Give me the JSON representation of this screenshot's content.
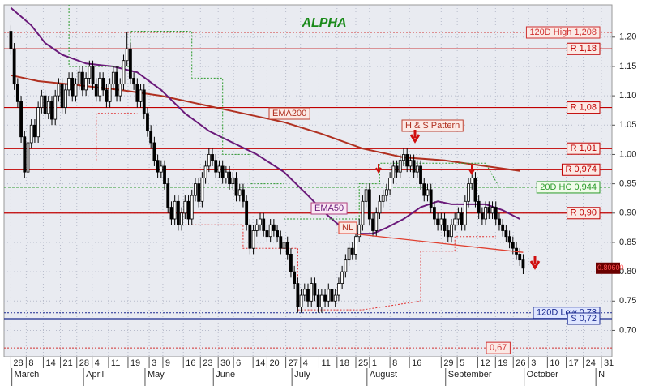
{
  "chart_data": {
    "type": "candlestick",
    "title": "ALPHA",
    "xlim": [
      -2,
      176
    ],
    "ylim": [
      0.655,
      1.255
    ],
    "xticks": [
      {
        "value": 0,
        "label": "28"
      },
      {
        "value": 4.5,
        "label": "8"
      },
      {
        "value": 9.5,
        "label": "14"
      },
      {
        "value": 14.5,
        "label": "21"
      },
      {
        "value": 19.3,
        "label": "28"
      },
      {
        "value": 23.8,
        "label": "4"
      },
      {
        "value": 28.6,
        "label": "11"
      },
      {
        "value": 34.3,
        "label": "19"
      },
      {
        "value": 40.5,
        "label": "3"
      },
      {
        "value": 44.5,
        "label": "9"
      },
      {
        "value": 50.5,
        "label": "16"
      },
      {
        "value": 55.5,
        "label": "23"
      },
      {
        "value": 60.7,
        "label": "30"
      },
      {
        "value": 65.2,
        "label": "6"
      },
      {
        "value": 70.9,
        "label": "14"
      },
      {
        "value": 75,
        "label": "20"
      },
      {
        "value": 80.5,
        "label": "27"
      },
      {
        "value": 84.8,
        "label": "4"
      },
      {
        "value": 90.2,
        "label": "11"
      },
      {
        "value": 95.5,
        "label": "18"
      },
      {
        "value": 101,
        "label": "25"
      },
      {
        "value": 105,
        "label": "1"
      },
      {
        "value": 111,
        "label": "8"
      },
      {
        "value": 116.7,
        "label": "16"
      },
      {
        "value": 126,
        "label": "29"
      },
      {
        "value": 130.7,
        "label": "5"
      },
      {
        "value": 136.7,
        "label": "12"
      },
      {
        "value": 141.9,
        "label": "19"
      },
      {
        "value": 147.1,
        "label": "26"
      },
      {
        "value": 151.6,
        "label": "3"
      },
      {
        "value": 157.1,
        "label": "10"
      },
      {
        "value": 162.6,
        "label": "17"
      },
      {
        "value": 167.6,
        "label": "24"
      },
      {
        "value": 172.9,
        "label": "31"
      }
    ],
    "months": [
      {
        "value": 1,
        "label": "March"
      },
      {
        "value": 22,
        "label": "April"
      },
      {
        "value": 40,
        "label": "May"
      },
      {
        "value": 60,
        "label": "June"
      },
      {
        "value": 83,
        "label": "July"
      },
      {
        "value": 105,
        "label": "August"
      },
      {
        "value": 128,
        "label": "September"
      },
      {
        "value": 151,
        "label": "October"
      },
      {
        "value": 172,
        "label": "N"
      }
    ],
    "yticks": [
      {
        "value": 0.7,
        "label": "0.70"
      },
      {
        "value": 0.75,
        "label": "0.75"
      },
      {
        "value": 0.8,
        "label": "0.80"
      },
      {
        "value": 0.85,
        "label": "0.85"
      },
      {
        "value": 0.9,
        "label": "0.90"
      },
      {
        "value": 0.95,
        "label": "0.95"
      },
      {
        "value": 1.0,
        "label": "1.00"
      },
      {
        "value": 1.05,
        "label": "1.05"
      },
      {
        "value": 1.1,
        "label": "1.10"
      },
      {
        "value": 1.15,
        "label": "1.15"
      },
      {
        "value": 1.2,
        "label": "1.20"
      }
    ],
    "up_color": "#ffffff",
    "down_color": "#000000",
    "open": [
      1.21,
      1.18,
      1.12,
      1.09,
      1.03,
      0.97,
      1.02,
      1.05,
      1.03,
      1.08,
      1.1,
      1.07,
      1.09,
      1.06,
      1.1,
      1.12,
      1.08,
      1.11,
      1.13,
      1.1,
      1.12,
      1.14,
      1.11,
      1.13,
      1.15,
      1.12,
      1.1,
      1.13,
      1.11,
      1.09,
      1.12,
      1.14,
      1.1,
      1.12,
      1.16,
      1.18,
      1.13,
      1.12,
      1.09,
      1.11,
      1.07,
      1.04,
      1.02,
      0.99,
      0.97,
      0.98,
      0.95,
      0.91,
      0.89,
      0.92,
      0.88,
      0.9,
      0.92,
      0.89,
      0.93,
      0.95,
      0.92,
      0.96,
      0.98,
      1.0,
      0.99,
      0.97,
      0.98,
      0.96,
      0.97,
      0.95,
      0.96,
      0.93,
      0.94,
      0.92,
      0.88,
      0.84,
      0.87,
      0.88,
      0.89,
      0.87,
      0.86,
      0.88,
      0.87,
      0.86,
      0.84,
      0.85,
      0.83,
      0.8,
      0.78,
      0.74,
      0.76,
      0.77,
      0.75,
      0.78,
      0.76,
      0.74,
      0.76,
      0.75,
      0.77,
      0.75,
      0.76,
      0.78,
      0.8,
      0.82,
      0.84,
      0.83,
      0.86,
      0.88,
      0.92,
      0.94,
      0.89,
      0.87,
      0.9,
      0.92,
      0.93,
      0.94,
      0.96,
      0.98,
      0.97,
      0.99,
      1.0,
      0.98,
      0.99,
      0.97,
      0.98,
      0.95,
      0.93,
      0.94,
      0.91,
      0.89,
      0.88,
      0.89,
      0.87,
      0.86,
      0.88,
      0.89,
      0.9,
      0.88,
      0.92,
      0.95,
      0.96,
      0.92,
      0.9,
      0.89,
      0.91,
      0.9,
      0.91,
      0.89,
      0.88,
      0.87,
      0.86,
      0.85,
      0.84,
      0.83,
      0.82
    ],
    "high": [
      1.22,
      1.19,
      1.13,
      1.1,
      1.04,
      1.03,
      1.06,
      1.06,
      1.09,
      1.11,
      1.11,
      1.1,
      1.1,
      1.11,
      1.13,
      1.13,
      1.12,
      1.14,
      1.14,
      1.13,
      1.15,
      1.15,
      1.14,
      1.16,
      1.16,
      1.13,
      1.14,
      1.14,
      1.12,
      1.13,
      1.15,
      1.15,
      1.13,
      1.17,
      1.208,
      1.19,
      1.14,
      1.13,
      1.12,
      1.12,
      1.08,
      1.05,
      1.03,
      1.0,
      0.99,
      0.99,
      0.96,
      0.92,
      0.93,
      0.93,
      0.91,
      0.93,
      0.93,
      0.94,
      0.96,
      0.96,
      0.97,
      0.99,
      1.01,
      1.01,
      1.0,
      0.99,
      0.99,
      0.98,
      0.98,
      0.97,
      0.97,
      0.95,
      0.95,
      0.93,
      0.89,
      0.88,
      0.89,
      0.9,
      0.9,
      0.88,
      0.89,
      0.89,
      0.88,
      0.87,
      0.86,
      0.86,
      0.84,
      0.81,
      0.79,
      0.77,
      0.78,
      0.78,
      0.79,
      0.79,
      0.77,
      0.77,
      0.77,
      0.78,
      0.78,
      0.77,
      0.79,
      0.81,
      0.83,
      0.85,
      0.85,
      0.87,
      0.89,
      0.93,
      0.95,
      0.95,
      0.9,
      0.91,
      0.93,
      0.94,
      0.95,
      0.97,
      0.99,
      0.99,
      1.0,
      1.01,
      1.01,
      1.0,
      1.0,
      0.99,
      0.99,
      0.96,
      0.95,
      0.95,
      0.92,
      0.9,
      0.9,
      0.9,
      0.88,
      0.89,
      0.9,
      0.91,
      0.91,
      0.93,
      0.96,
      0.97,
      0.97,
      0.93,
      0.91,
      0.92,
      0.92,
      0.92,
      0.92,
      0.9,
      0.89,
      0.88,
      0.87,
      0.86,
      0.85,
      0.84,
      0.83
    ],
    "low": [
      1.17,
      1.11,
      1.08,
      1.02,
      0.96,
      0.96,
      1.01,
      1.02,
      1.02,
      1.07,
      1.06,
      1.06,
      1.05,
      1.05,
      1.09,
      1.07,
      1.07,
      1.1,
      1.09,
      1.09,
      1.11,
      1.1,
      1.1,
      1.12,
      1.11,
      1.09,
      1.09,
      1.1,
      1.08,
      1.08,
      1.11,
      1.09,
      1.09,
      1.11,
      1.15,
      1.12,
      1.11,
      1.08,
      1.08,
      1.06,
      1.03,
      1.01,
      0.98,
      0.96,
      0.96,
      0.94,
      0.9,
      0.88,
      0.88,
      0.87,
      0.87,
      0.89,
      0.88,
      0.88,
      0.92,
      0.91,
      0.91,
      0.95,
      0.97,
      0.98,
      0.96,
      0.96,
      0.95,
      0.95,
      0.94,
      0.94,
      0.92,
      0.92,
      0.91,
      0.87,
      0.83,
      0.83,
      0.86,
      0.87,
      0.86,
      0.85,
      0.85,
      0.86,
      0.85,
      0.83,
      0.83,
      0.82,
      0.79,
      0.77,
      0.73,
      0.73,
      0.75,
      0.74,
      0.74,
      0.75,
      0.73,
      0.73,
      0.74,
      0.74,
      0.74,
      0.74,
      0.75,
      0.77,
      0.79,
      0.81,
      0.82,
      0.82,
      0.85,
      0.87,
      0.91,
      0.88,
      0.86,
      0.86,
      0.89,
      0.91,
      0.92,
      0.93,
      0.95,
      0.96,
      0.96,
      0.98,
      0.97,
      0.97,
      0.96,
      0.96,
      0.94,
      0.92,
      0.92,
      0.9,
      0.88,
      0.87,
      0.87,
      0.86,
      0.85,
      0.85,
      0.87,
      0.88,
      0.87,
      0.87,
      0.91,
      0.94,
      0.91,
      0.89,
      0.88,
      0.88,
      0.89,
      0.89,
      0.88,
      0.87,
      0.86,
      0.85,
      0.84,
      0.83,
      0.82,
      0.81,
      0.796
    ],
    "close": [
      1.18,
      1.12,
      1.09,
      1.03,
      0.97,
      1.02,
      1.05,
      1.03,
      1.08,
      1.1,
      1.07,
      1.09,
      1.06,
      1.1,
      1.12,
      1.08,
      1.11,
      1.13,
      1.1,
      1.12,
      1.14,
      1.11,
      1.13,
      1.15,
      1.12,
      1.1,
      1.13,
      1.11,
      1.09,
      1.12,
      1.14,
      1.1,
      1.12,
      1.16,
      1.18,
      1.13,
      1.12,
      1.09,
      1.11,
      1.07,
      1.04,
      1.02,
      0.99,
      0.97,
      0.98,
      0.95,
      0.91,
      0.89,
      0.92,
      0.88,
      0.9,
      0.92,
      0.89,
      0.93,
      0.95,
      0.92,
      0.96,
      0.98,
      1.0,
      0.99,
      0.97,
      0.98,
      0.96,
      0.97,
      0.95,
      0.96,
      0.93,
      0.94,
      0.92,
      0.88,
      0.84,
      0.87,
      0.88,
      0.89,
      0.87,
      0.86,
      0.88,
      0.87,
      0.86,
      0.84,
      0.85,
      0.83,
      0.8,
      0.78,
      0.74,
      0.76,
      0.77,
      0.75,
      0.78,
      0.76,
      0.74,
      0.76,
      0.75,
      0.77,
      0.75,
      0.76,
      0.78,
      0.8,
      0.82,
      0.84,
      0.83,
      0.86,
      0.88,
      0.92,
      0.94,
      0.89,
      0.87,
      0.9,
      0.92,
      0.93,
      0.94,
      0.96,
      0.98,
      0.97,
      0.99,
      1.0,
      0.98,
      0.99,
      0.97,
      0.98,
      0.95,
      0.93,
      0.94,
      0.91,
      0.89,
      0.88,
      0.89,
      0.87,
      0.86,
      0.88,
      0.89,
      0.9,
      0.88,
      0.92,
      0.95,
      0.96,
      0.92,
      0.9,
      0.89,
      0.91,
      0.9,
      0.91,
      0.89,
      0.88,
      0.87,
      0.86,
      0.85,
      0.84,
      0.83,
      0.82,
      0.806
    ],
    "lines": [
      {
        "name": "EMA200",
        "color": "#b03020",
        "width": 2,
        "x": [
          0,
          8,
          20,
          32,
          44,
          56,
          68,
          80,
          91,
          103,
          115,
          127,
          139,
          149
        ],
        "values": [
          1.135,
          1.125,
          1.118,
          1.11,
          1.1,
          1.085,
          1.07,
          1.055,
          1.035,
          1.01,
          0.995,
          0.99,
          0.98,
          0.972
        ]
      },
      {
        "name": "EMA50",
        "color": "#6a1a7a",
        "width": 2,
        "x": [
          0,
          6,
          10,
          15,
          22,
          30,
          37,
          44,
          51,
          58,
          65,
          72,
          80,
          87,
          92,
          96,
          101,
          106,
          110,
          115,
          120,
          125,
          129,
          134,
          139,
          144,
          149
        ],
        "values": [
          1.25,
          1.22,
          1.19,
          1.17,
          1.155,
          1.15,
          1.14,
          1.11,
          1.07,
          1.04,
          1.02,
          1.0,
          0.97,
          0.93,
          0.9,
          0.88,
          0.865,
          0.865,
          0.875,
          0.89,
          0.91,
          0.92,
          0.915,
          0.915,
          0.915,
          0.905,
          0.89
        ]
      },
      {
        "color": "#2a9a2a",
        "width": 1,
        "dash": "2 2",
        "x": [
          17,
          17,
          35,
          35,
          53,
          53,
          62,
          62,
          70,
          70,
          80,
          80,
          102,
          102,
          108,
          108,
          139,
          143,
          150
        ],
        "values": [
          1.255,
          1.15,
          1.15,
          1.21,
          1.21,
          1.13,
          1.13,
          1.0,
          1.0,
          0.95,
          0.95,
          0.89,
          0.89,
          0.95,
          0.95,
          0.985,
          0.985,
          0.944,
          0.944
        ]
      },
      {
        "color": "#e03030",
        "width": 1,
        "dash": "2 2",
        "x": [
          25,
          25,
          37,
          45,
          51,
          68,
          68,
          84,
          84,
          103,
          120,
          120,
          130,
          130,
          142
        ],
        "values": [
          0.99,
          1.07,
          1.07,
          null,
          0.88,
          0.88,
          0.84,
          0.84,
          0.735,
          0.735,
          0.75,
          0.835,
          0.835,
          0.86,
          0.86
        ]
      }
    ],
    "levels": [
      {
        "label": "120D High 1,208",
        "value": 1.208,
        "color": "#d03030",
        "style": "dotted"
      },
      {
        "label": "R 1,18",
        "value": 1.18,
        "color": "#c00000",
        "style": "solid"
      },
      {
        "label": "R 1,08",
        "value": 1.08,
        "color": "#c00000",
        "style": "solid"
      },
      {
        "label": "R 1,01",
        "value": 1.01,
        "color": "#c00000",
        "style": "solid"
      },
      {
        "label": "R 0,974",
        "value": 0.974,
        "color": "#c00000",
        "style": "solid"
      },
      {
        "label": "20D HC 0,944",
        "value": 0.944,
        "color": "#2a9a2a",
        "style": "dashed"
      },
      {
        "label": "R 0,90",
        "value": 0.9,
        "color": "#c00000",
        "style": "solid"
      },
      {
        "label": "120D Low 0,73",
        "value": 0.73,
        "color": "#1a2a90",
        "style": "dotted"
      },
      {
        "label": "S 0,72",
        "value": 0.72,
        "color": "#1a2a90",
        "style": "solid"
      },
      {
        "label": "0,67",
        "value": 0.67,
        "color": "#d03030",
        "style": "dotted"
      }
    ],
    "neckline": {
      "label": "NL",
      "color": "#e04030",
      "x": [
        100,
        150
      ],
      "values": [
        0.865,
        0.833
      ]
    },
    "pattern_label": "H & S Pattern",
    "last_price": {
      "value": 0.806,
      "label": "0.80600"
    }
  }
}
